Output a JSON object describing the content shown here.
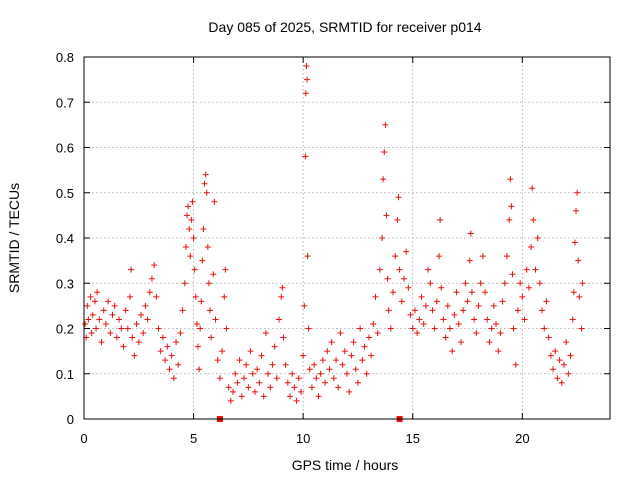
{
  "chart_data": {
    "type": "scatter",
    "title": "Day 085 of 2025, SRMTID for receiver p014",
    "xlabel": "GPS time / hours",
    "ylabel": "SRMTID / TECUs",
    "xlim": [
      0,
      24
    ],
    "ylim": [
      0,
      0.8
    ],
    "xticks": [
      0,
      5,
      10,
      15,
      20
    ],
    "xtick_labels": [
      "0",
      "5",
      "10",
      "15",
      "20"
    ],
    "yticks": [
      0,
      0.1,
      0.2,
      0.3,
      0.4,
      0.5,
      0.6,
      0.7,
      0.8
    ],
    "ytick_labels": [
      "0",
      "0.1",
      "0.2",
      "0.3",
      "0.4",
      "0.5",
      "0.6",
      "0.7",
      "0.8"
    ],
    "grid": true,
    "marker": "plus",
    "colors": {
      "series": "#e8120c",
      "grid": "#a0a0a0",
      "axes": "#000000"
    },
    "series": [
      {
        "name": "SRMTID",
        "points": [
          [
            0.05,
            0.21
          ],
          [
            0.1,
            0.18
          ],
          [
            0.15,
            0.25
          ],
          [
            0.2,
            0.22
          ],
          [
            0.3,
            0.27
          ],
          [
            0.35,
            0.19
          ],
          [
            0.4,
            0.23
          ],
          [
            0.5,
            0.26
          ],
          [
            0.55,
            0.2
          ],
          [
            0.6,
            0.28
          ],
          [
            0.7,
            0.22
          ],
          [
            0.8,
            0.17
          ],
          [
            0.9,
            0.24
          ],
          [
            1.0,
            0.21
          ],
          [
            1.1,
            0.26
          ],
          [
            1.2,
            0.19
          ],
          [
            1.3,
            0.23
          ],
          [
            1.4,
            0.25
          ],
          [
            1.5,
            0.18
          ],
          [
            1.6,
            0.22
          ],
          [
            1.7,
            0.2
          ],
          [
            1.8,
            0.16
          ],
          [
            1.9,
            0.24
          ],
          [
            2.0,
            0.2
          ],
          [
            2.1,
            0.27
          ],
          [
            2.15,
            0.33
          ],
          [
            2.2,
            0.18
          ],
          [
            2.3,
            0.14
          ],
          [
            2.4,
            0.21
          ],
          [
            2.5,
            0.17
          ],
          [
            2.6,
            0.23
          ],
          [
            2.7,
            0.19
          ],
          [
            2.8,
            0.25
          ],
          [
            2.9,
            0.22
          ],
          [
            3.0,
            0.28
          ],
          [
            3.1,
            0.31
          ],
          [
            3.2,
            0.34
          ],
          [
            3.3,
            0.27
          ],
          [
            3.4,
            0.2
          ],
          [
            3.5,
            0.15
          ],
          [
            3.6,
            0.18
          ],
          [
            3.7,
            0.13
          ],
          [
            3.8,
            0.16
          ],
          [
            3.9,
            0.11
          ],
          [
            4.0,
            0.14
          ],
          [
            4.1,
            0.09
          ],
          [
            4.2,
            0.17
          ],
          [
            4.3,
            0.12
          ],
          [
            4.4,
            0.19
          ],
          [
            4.5,
            0.24
          ],
          [
            4.6,
            0.3
          ],
          [
            4.65,
            0.38
          ],
          [
            4.7,
            0.45
          ],
          [
            4.75,
            0.47
          ],
          [
            4.8,
            0.42
          ],
          [
            4.85,
            0.36
          ],
          [
            4.9,
            0.44
          ],
          [
            4.95,
            0.48
          ],
          [
            5.0,
            0.4
          ],
          [
            5.05,
            0.33
          ],
          [
            5.1,
            0.27
          ],
          [
            5.15,
            0.21
          ],
          [
            5.2,
            0.16
          ],
          [
            5.25,
            0.11
          ],
          [
            5.3,
            0.2
          ],
          [
            5.35,
            0.26
          ],
          [
            5.4,
            0.35
          ],
          [
            5.45,
            0.42
          ],
          [
            5.5,
            0.52
          ],
          [
            5.55,
            0.54
          ],
          [
            5.6,
            0.5
          ],
          [
            5.65,
            0.38
          ],
          [
            5.7,
            0.3
          ],
          [
            5.75,
            0.24
          ],
          [
            5.8,
            0.18
          ],
          [
            5.9,
            0.32
          ],
          [
            5.95,
            0.48
          ],
          [
            6.0,
            0.22
          ],
          [
            6.1,
            0.13
          ],
          [
            6.2,
            0.09
          ],
          [
            6.3,
            0.15
          ],
          [
            6.4,
            0.27
          ],
          [
            6.45,
            0.33
          ],
          [
            6.5,
            0.2
          ],
          [
            6.6,
            0.07
          ],
          [
            6.7,
            0.04
          ],
          [
            6.8,
            0.06
          ],
          [
            6.9,
            0.1
          ],
          [
            7.0,
            0.08
          ],
          [
            7.1,
            0.13
          ],
          [
            7.2,
            0.05
          ],
          [
            7.3,
            0.09
          ],
          [
            7.4,
            0.12
          ],
          [
            7.5,
            0.07
          ],
          [
            7.6,
            0.15
          ],
          [
            7.7,
            0.1
          ],
          [
            7.8,
            0.06
          ],
          [
            7.9,
            0.11
          ],
          [
            8.0,
            0.08
          ],
          [
            8.1,
            0.14
          ],
          [
            8.2,
            0.05
          ],
          [
            8.3,
            0.19
          ],
          [
            8.4,
            0.1
          ],
          [
            8.5,
            0.07
          ],
          [
            8.6,
            0.12
          ],
          [
            8.7,
            0.16
          ],
          [
            8.8,
            0.09
          ],
          [
            8.9,
            0.22
          ],
          [
            9.0,
            0.27
          ],
          [
            9.05,
            0.29
          ],
          [
            9.1,
            0.18
          ],
          [
            9.2,
            0.12
          ],
          [
            9.3,
            0.08
          ],
          [
            9.4,
            0.05
          ],
          [
            9.5,
            0.1
          ],
          [
            9.6,
            0.07
          ],
          [
            9.7,
            0.04
          ],
          [
            9.8,
            0.09
          ],
          [
            9.9,
            0.06
          ],
          [
            10.0,
            0.14
          ],
          [
            10.05,
            0.25
          ],
          [
            10.1,
            0.58
          ],
          [
            10.12,
            0.72
          ],
          [
            10.15,
            0.78
          ],
          [
            10.18,
            0.75
          ],
          [
            10.2,
            0.36
          ],
          [
            10.25,
            0.2
          ],
          [
            10.3,
            0.11
          ],
          [
            10.4,
            0.07
          ],
          [
            10.5,
            0.12
          ],
          [
            10.6,
            0.09
          ],
          [
            10.7,
            0.05
          ],
          [
            10.8,
            0.1
          ],
          [
            10.9,
            0.13
          ],
          [
            11.0,
            0.08
          ],
          [
            11.1,
            0.15
          ],
          [
            11.2,
            0.11
          ],
          [
            11.3,
            0.17
          ],
          [
            11.4,
            0.09
          ],
          [
            11.5,
            0.13
          ],
          [
            11.6,
            0.07
          ],
          [
            11.7,
            0.19
          ],
          [
            11.8,
            0.12
          ],
          [
            11.9,
            0.15
          ],
          [
            12.0,
            0.1
          ],
          [
            12.1,
            0.06
          ],
          [
            12.2,
            0.14
          ],
          [
            12.3,
            0.17
          ],
          [
            12.4,
            0.11
          ],
          [
            12.5,
            0.08
          ],
          [
            12.6,
            0.2
          ],
          [
            12.7,
            0.13
          ],
          [
            12.8,
            0.16
          ],
          [
            12.9,
            0.1
          ],
          [
            13.0,
            0.18
          ],
          [
            13.1,
            0.14
          ],
          [
            13.2,
            0.21
          ],
          [
            13.3,
            0.27
          ],
          [
            13.4,
            0.19
          ],
          [
            13.5,
            0.33
          ],
          [
            13.6,
            0.4
          ],
          [
            13.65,
            0.53
          ],
          [
            13.7,
            0.59
          ],
          [
            13.75,
            0.65
          ],
          [
            13.8,
            0.45
          ],
          [
            13.85,
            0.31
          ],
          [
            13.9,
            0.24
          ],
          [
            14.0,
            0.2
          ],
          [
            14.1,
            0.28
          ],
          [
            14.2,
            0.36
          ],
          [
            14.3,
            0.44
          ],
          [
            14.35,
            0.49
          ],
          [
            14.4,
            0.33
          ],
          [
            14.5,
            0.26
          ],
          [
            14.6,
            0.31
          ],
          [
            14.7,
            0.37
          ],
          [
            14.8,
            0.29
          ],
          [
            14.9,
            0.23
          ],
          [
            15.0,
            0.2
          ],
          [
            15.1,
            0.24
          ],
          [
            15.2,
            0.19
          ],
          [
            15.3,
            0.22
          ],
          [
            15.4,
            0.27
          ],
          [
            15.5,
            0.21
          ],
          [
            15.6,
            0.25
          ],
          [
            15.7,
            0.33
          ],
          [
            15.8,
            0.3
          ],
          [
            15.9,
            0.24
          ],
          [
            16.0,
            0.2
          ],
          [
            16.1,
            0.26
          ],
          [
            16.2,
            0.36
          ],
          [
            16.25,
            0.44
          ],
          [
            16.3,
            0.29
          ],
          [
            16.4,
            0.22
          ],
          [
            16.5,
            0.18
          ],
          [
            16.6,
            0.25
          ],
          [
            16.7,
            0.2
          ],
          [
            16.8,
            0.15
          ],
          [
            16.9,
            0.23
          ],
          [
            17.0,
            0.28
          ],
          [
            17.1,
            0.21
          ],
          [
            17.2,
            0.17
          ],
          [
            17.3,
            0.24
          ],
          [
            17.4,
            0.3
          ],
          [
            17.5,
            0.26
          ],
          [
            17.6,
            0.35
          ],
          [
            17.65,
            0.41
          ],
          [
            17.7,
            0.28
          ],
          [
            17.8,
            0.22
          ],
          [
            17.9,
            0.19
          ],
          [
            18.0,
            0.25
          ],
          [
            18.1,
            0.3
          ],
          [
            18.2,
            0.36
          ],
          [
            18.3,
            0.28
          ],
          [
            18.4,
            0.22
          ],
          [
            18.5,
            0.17
          ],
          [
            18.6,
            0.2
          ],
          [
            18.7,
            0.25
          ],
          [
            18.8,
            0.21
          ],
          [
            18.9,
            0.15
          ],
          [
            19.0,
            0.19
          ],
          [
            19.1,
            0.26
          ],
          [
            19.2,
            0.3
          ],
          [
            19.3,
            0.36
          ],
          [
            19.4,
            0.44
          ],
          [
            19.45,
            0.53
          ],
          [
            19.5,
            0.47
          ],
          [
            19.55,
            0.32
          ],
          [
            19.6,
            0.2
          ],
          [
            19.7,
            0.12
          ],
          [
            19.8,
            0.24
          ],
          [
            19.9,
            0.3
          ],
          [
            20.0,
            0.27
          ],
          [
            20.1,
            0.22
          ],
          [
            20.2,
            0.33
          ],
          [
            20.3,
            0.29
          ],
          [
            20.4,
            0.38
          ],
          [
            20.45,
            0.51
          ],
          [
            20.5,
            0.44
          ],
          [
            20.6,
            0.33
          ],
          [
            20.7,
            0.4
          ],
          [
            20.8,
            0.3
          ],
          [
            20.9,
            0.24
          ],
          [
            21.0,
            0.2
          ],
          [
            21.1,
            0.26
          ],
          [
            21.2,
            0.18
          ],
          [
            21.3,
            0.14
          ],
          [
            21.4,
            0.11
          ],
          [
            21.5,
            0.15
          ],
          [
            21.6,
            0.09
          ],
          [
            21.7,
            0.13
          ],
          [
            21.8,
            0.08
          ],
          [
            21.9,
            0.12
          ],
          [
            22.0,
            0.17
          ],
          [
            22.1,
            0.1
          ],
          [
            22.2,
            0.14
          ],
          [
            22.3,
            0.22
          ],
          [
            22.35,
            0.28
          ],
          [
            22.4,
            0.39
          ],
          [
            22.45,
            0.46
          ],
          [
            22.5,
            0.5
          ],
          [
            22.55,
            0.35
          ],
          [
            22.6,
            0.27
          ],
          [
            22.7,
            0.2
          ],
          [
            22.75,
            0.3
          ]
        ]
      }
    ],
    "xaxis_markers": [
      6.2,
      14.4
    ]
  }
}
